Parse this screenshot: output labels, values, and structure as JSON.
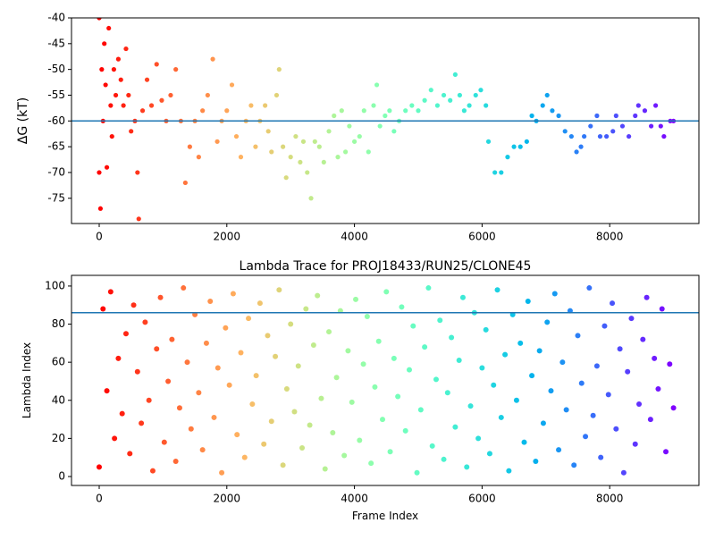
{
  "chart_data": [
    {
      "type": "scatter",
      "y_label": "ΔG (kT)",
      "colormap": "rainbow_r",
      "hlines": [
        -60
      ],
      "hline_color": "#1f77b4",
      "xlim": [
        -434,
        9398
      ],
      "ylim": [
        -79.9,
        -40
      ],
      "xticks": [
        0,
        2000,
        4000,
        6000,
        8000
      ],
      "yticks": [
        -75,
        -70,
        -65,
        -60,
        -55,
        -50,
        -45,
        -40
      ],
      "x": [
        0,
        0,
        20,
        40,
        60,
        80,
        100,
        120,
        150,
        180,
        200,
        230,
        260,
        300,
        340,
        380,
        420,
        460,
        500,
        560,
        600,
        620,
        680,
        750,
        820,
        900,
        980,
        1050,
        1120,
        1200,
        1280,
        1350,
        1420,
        1500,
        1560,
        1620,
        1700,
        1780,
        1850,
        1920,
        2000,
        2080,
        2150,
        2220,
        2300,
        2380,
        2450,
        2520,
        2600,
        2650,
        2700,
        2780,
        2820,
        2880,
        2930,
        3000,
        3080,
        3150,
        3200,
        3260,
        3320,
        3380,
        3450,
        3520,
        3600,
        3680,
        3740,
        3800,
        3860,
        3920,
        4000,
        4080,
        4150,
        4220,
        4300,
        4350,
        4400,
        4480,
        4550,
        4620,
        4700,
        4800,
        4900,
        5000,
        5100,
        5200,
        5300,
        5400,
        5500,
        5580,
        5650,
        5720,
        5800,
        5900,
        5980,
        6060,
        6100,
        6200,
        6300,
        6400,
        6500,
        6600,
        6700,
        6780,
        6850,
        6950,
        7020,
        7100,
        7200,
        7300,
        7400,
        7480,
        7550,
        7600,
        7700,
        7800,
        7850,
        7950,
        8050,
        8100,
        8200,
        8300,
        8400,
        8450,
        8550,
        8650,
        8720,
        8800,
        8850,
        8950,
        9000
      ],
      "values": [
        -40,
        -70,
        -77,
        -50,
        -60,
        -45,
        -53,
        -69,
        -42,
        -57,
        -63,
        -50,
        -55,
        -48,
        -52,
        -57,
        -46,
        -55,
        -62,
        -60,
        -70,
        -79,
        -58,
        -52,
        -57,
        -49,
        -56,
        -60,
        -55,
        -50,
        -60,
        -72,
        -65,
        -60,
        -67,
        -58,
        -55,
        -48,
        -64,
        -60,
        -58,
        -53,
        -63,
        -67,
        -60,
        -57,
        -65,
        -60,
        -57,
        -62,
        -66,
        -55,
        -50,
        -65,
        -71,
        -67,
        -63,
        -68,
        -64,
        -70,
        -75,
        -64,
        -65,
        -68,
        -62,
        -59,
        -67,
        -58,
        -66,
        -61,
        -64,
        -63,
        -58,
        -66,
        -57,
        -53,
        -61,
        -59,
        -58,
        -62,
        -60,
        -58,
        -57,
        -58,
        -56,
        -54,
        -57,
        -55,
        -56,
        -51,
        -55,
        -58,
        -57,
        -55,
        -54,
        -57,
        -64,
        -70,
        -70,
        -67,
        -65,
        -65,
        -64,
        -59,
        -60,
        -57,
        -55,
        -58,
        -59,
        -62,
        -63,
        -66,
        -65,
        -63,
        -61,
        -59,
        -63,
        -63,
        -62,
        -59,
        -61,
        -63,
        -59,
        -57,
        -58,
        -61,
        -57,
        -61,
        -63,
        -60,
        -60
      ]
    },
    {
      "type": "scatter",
      "title": "Lambda Trace for PROJ18433/RUN25/CLONE45",
      "x_label": "Frame Index",
      "y_label": "Lambda Index",
      "colormap": "rainbow_r",
      "hlines": [
        86
      ],
      "hline_color": "#1f77b4",
      "xlim": [
        -434,
        9398
      ],
      "ylim": [
        -4.7,
        105.6
      ],
      "xticks": [
        0,
        2000,
        4000,
        6000,
        8000
      ],
      "yticks": [
        0,
        20,
        40,
        60,
        80,
        100
      ],
      "x": [
        0,
        60,
        120,
        180,
        240,
        300,
        360,
        420,
        480,
        540,
        600,
        660,
        720,
        780,
        840,
        900,
        960,
        1020,
        1080,
        1140,
        1200,
        1260,
        1320,
        1380,
        1440,
        1500,
        1560,
        1620,
        1680,
        1740,
        1800,
        1860,
        1920,
        1980,
        2040,
        2100,
        2160,
        2220,
        2280,
        2340,
        2400,
        2460,
        2520,
        2580,
        2640,
        2700,
        2760,
        2820,
        2880,
        2940,
        3000,
        3060,
        3120,
        3180,
        3240,
        3300,
        3360,
        3420,
        3480,
        3540,
        3600,
        3660,
        3720,
        3780,
        3840,
        3900,
        3960,
        4020,
        4080,
        4140,
        4200,
        4260,
        4320,
        4380,
        4440,
        4500,
        4560,
        4620,
        4680,
        4740,
        4800,
        4860,
        4920,
        4980,
        5040,
        5100,
        5160,
        5220,
        5280,
        5340,
        5400,
        5460,
        5520,
        5580,
        5640,
        5700,
        5760,
        5820,
        5880,
        5940,
        6000,
        6060,
        6120,
        6180,
        6240,
        6300,
        6360,
        6420,
        6480,
        6540,
        6600,
        6660,
        6720,
        6780,
        6840,
        6900,
        6960,
        7020,
        7080,
        7140,
        7200,
        7260,
        7320,
        7380,
        7440,
        7500,
        7560,
        7620,
        7680,
        7740,
        7800,
        7860,
        7920,
        7980,
        8040,
        8100,
        8160,
        8220,
        8280,
        8340,
        8400,
        8460,
        8520,
        8580,
        8640,
        8700,
        8760,
        8820,
        8880,
        8940,
        9000
      ],
      "values": [
        5,
        88,
        45,
        97,
        20,
        62,
        33,
        75,
        12,
        90,
        55,
        28,
        81,
        40,
        3,
        67,
        94,
        18,
        50,
        72,
        8,
        36,
        99,
        60,
        25,
        85,
        44,
        14,
        70,
        92,
        31,
        57,
        2,
        78,
        48,
        96,
        22,
        65,
        10,
        83,
        38,
        53,
        91,
        17,
        74,
        29,
        63,
        98,
        6,
        46,
        80,
        34,
        58,
        15,
        88,
        27,
        69,
        95,
        41,
        4,
        76,
        23,
        52,
        87,
        11,
        66,
        39,
        93,
        19,
        59,
        84,
        7,
        47,
        71,
        30,
        97,
        13,
        62,
        42,
        89,
        24,
        56,
        79,
        2,
        35,
        68,
        99,
        16,
        51,
        82,
        9,
        44,
        73,
        26,
        61,
        94,
        5,
        37,
        86,
        20,
        57,
        77,
        12,
        48,
        98,
        31,
        64,
        3,
        85,
        40,
        70,
        18,
        92,
        53,
        8,
        66,
        28,
        81,
        45,
        96,
        14,
        60,
        35,
        87,
        6,
        74,
        49,
        21,
        99,
        32,
        58,
        10,
        79,
        43,
        91,
        25,
        67,
        2,
        55,
        83,
        17,
        38,
        72,
        94,
        30,
        62,
        46,
        88,
        13,
        59,
        36
      ]
    }
  ]
}
